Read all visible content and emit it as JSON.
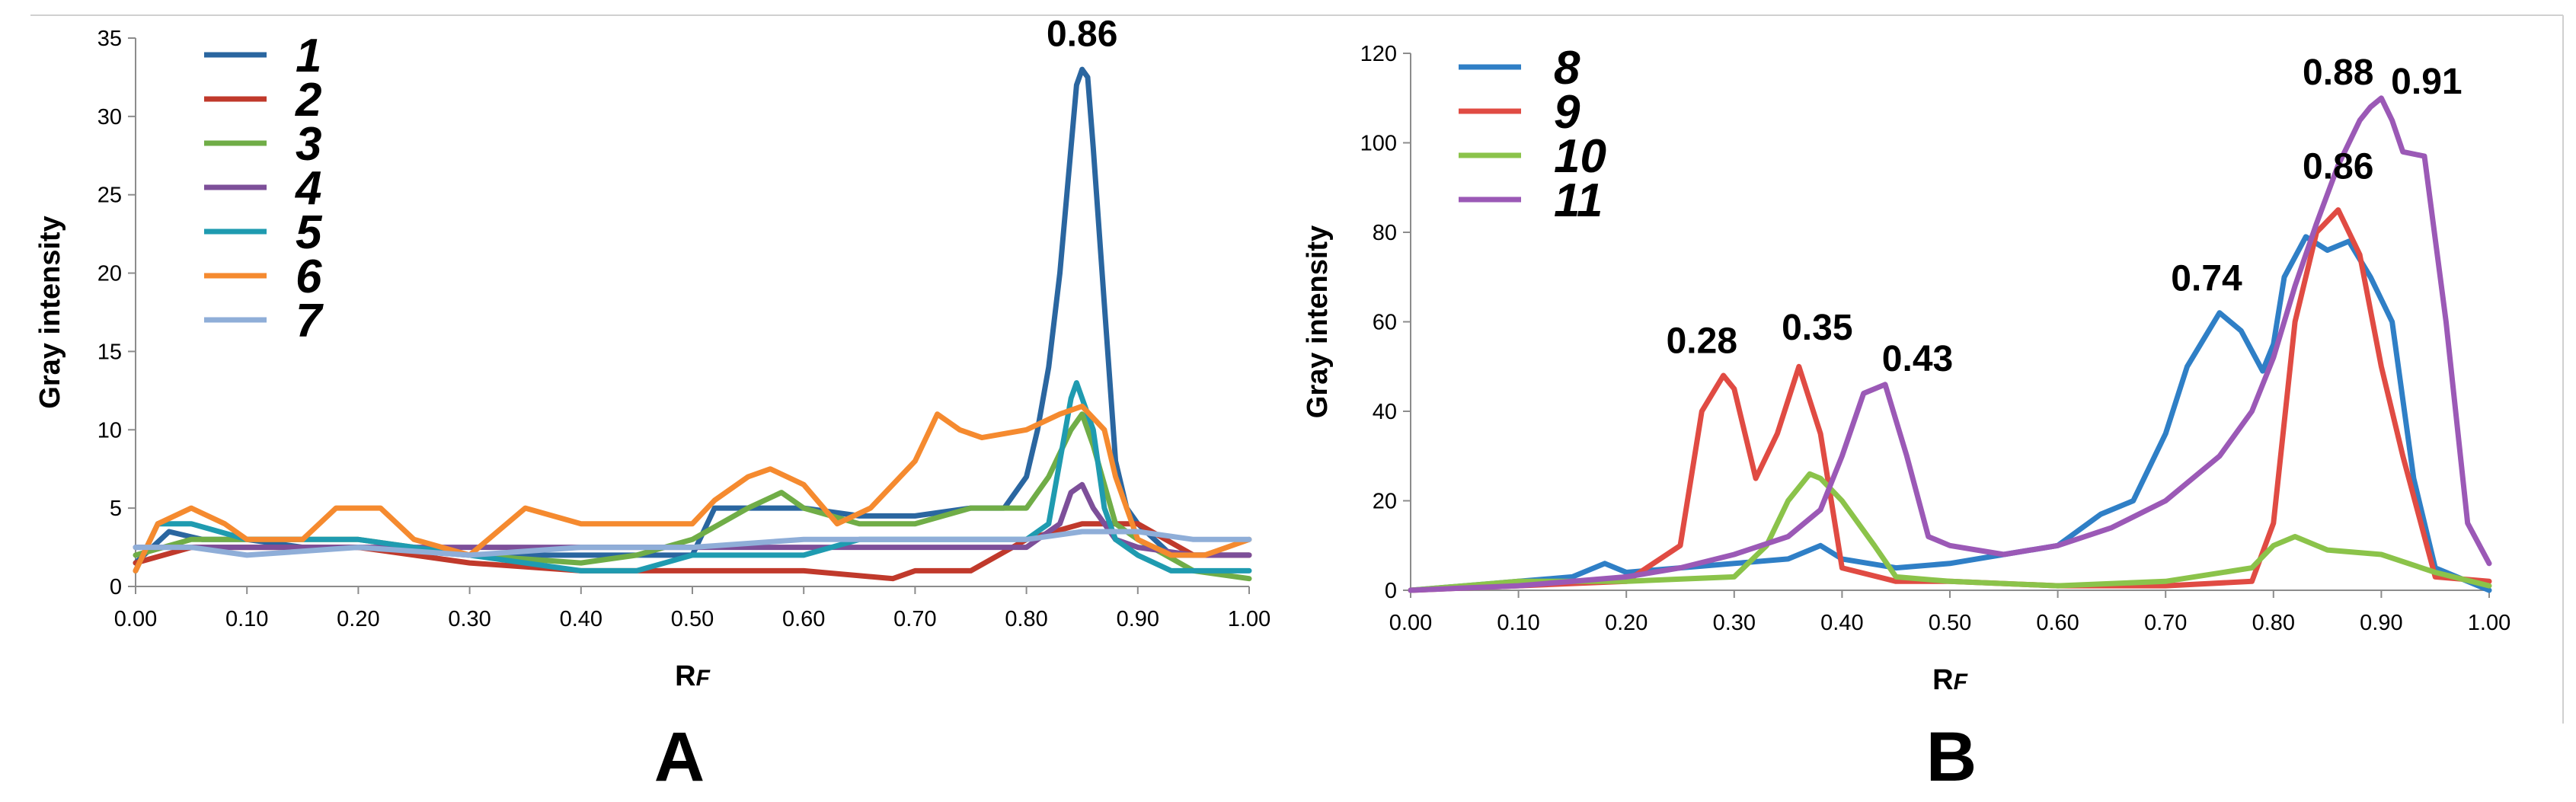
{
  "chart_data": [
    {
      "type": "line",
      "panel_label": "A",
      "title": "",
      "xlabel": "Rᶠ",
      "xlabel_main": "R",
      "xlabel_sub": "F",
      "ylabel": "Gray intensity",
      "xlim": [
        0,
        1
      ],
      "ylim": [
        0,
        35
      ],
      "x_ticks": [
        "0.00",
        "0.10",
        "0.20",
        "0.30",
        "0.40",
        "0.50",
        "0.60",
        "0.70",
        "0.80",
        "0.90",
        "1.00"
      ],
      "y_ticks": [
        "0",
        "5",
        "10",
        "15",
        "20",
        "25",
        "30",
        "35"
      ],
      "legend_position": "top-left",
      "series": [
        {
          "name": "1",
          "color": "#2a66a0",
          "x": [
            0,
            0.03,
            0.06,
            0.1,
            0.15,
            0.2,
            0.3,
            0.4,
            0.5,
            0.52,
            0.55,
            0.6,
            0.65,
            0.7,
            0.75,
            0.78,
            0.8,
            0.81,
            0.82,
            0.83,
            0.84,
            0.845,
            0.85,
            0.855,
            0.86,
            0.87,
            0.88,
            0.89,
            0.9,
            0.93,
            0.96,
            1.0
          ],
          "y": [
            1.5,
            3.5,
            3,
            3,
            2.5,
            2.5,
            2,
            2,
            2,
            5,
            5,
            5,
            4.5,
            4.5,
            5,
            5,
            7,
            10,
            14,
            20,
            28,
            32,
            33,
            32.5,
            28,
            18,
            8,
            5,
            4,
            2,
            2,
            2
          ]
        },
        {
          "name": "2",
          "color": "#c0392b",
          "x": [
            0,
            0.05,
            0.1,
            0.2,
            0.3,
            0.4,
            0.5,
            0.6,
            0.68,
            0.7,
            0.75,
            0.8,
            0.85,
            0.9,
            0.95,
            1.0
          ],
          "y": [
            1.5,
            2.5,
            2.5,
            2.5,
            1.5,
            1,
            1,
            1,
            0.5,
            1,
            1,
            3,
            4,
            4,
            2,
            2
          ]
        },
        {
          "name": "3",
          "color": "#70ad47",
          "x": [
            0,
            0.05,
            0.1,
            0.2,
            0.3,
            0.4,
            0.45,
            0.5,
            0.55,
            0.58,
            0.6,
            0.65,
            0.7,
            0.75,
            0.8,
            0.82,
            0.84,
            0.85,
            0.86,
            0.88,
            0.9,
            0.95,
            1.0
          ],
          "y": [
            2,
            3,
            3,
            3,
            2,
            1.5,
            2,
            3,
            5,
            6,
            5,
            4,
            4,
            5,
            5,
            7,
            10,
            11,
            9,
            4,
            3,
            1,
            0.5
          ]
        },
        {
          "name": "4",
          "color": "#7d4f99",
          "x": [
            0,
            0.05,
            0.1,
            0.2,
            0.3,
            0.4,
            0.5,
            0.6,
            0.7,
            0.8,
            0.83,
            0.84,
            0.85,
            0.86,
            0.88,
            0.9,
            0.95,
            1.0
          ],
          "y": [
            2.5,
            2.5,
            2.5,
            2.5,
            2.5,
            2.5,
            2.5,
            2.5,
            2.5,
            2.5,
            4,
            6,
            6.5,
            5,
            3,
            2.5,
            2,
            2
          ]
        },
        {
          "name": "5",
          "color": "#1f9bb0",
          "x": [
            0,
            0.02,
            0.05,
            0.1,
            0.2,
            0.3,
            0.4,
            0.45,
            0.5,
            0.55,
            0.6,
            0.65,
            0.7,
            0.75,
            0.8,
            0.82,
            0.83,
            0.84,
            0.845,
            0.85,
            0.86,
            0.87,
            0.88,
            0.9,
            0.93,
            0.96,
            1.0
          ],
          "y": [
            1,
            4,
            4,
            3,
            3,
            2,
            1,
            1,
            2,
            2,
            2,
            3,
            3,
            3,
            3,
            4,
            8,
            12,
            13,
            12,
            10,
            5,
            3,
            2,
            1,
            1,
            1
          ]
        },
        {
          "name": "6",
          "color": "#f58a2f",
          "x": [
            0,
            0.02,
            0.05,
            0.08,
            0.1,
            0.15,
            0.18,
            0.22,
            0.25,
            0.3,
            0.35,
            0.4,
            0.45,
            0.5,
            0.52,
            0.55,
            0.57,
            0.6,
            0.63,
            0.66,
            0.7,
            0.72,
            0.74,
            0.76,
            0.8,
            0.83,
            0.85,
            0.87,
            0.88,
            0.9,
            0.93,
            0.96,
            1.0
          ],
          "y": [
            1,
            4,
            5,
            4,
            3,
            3,
            5,
            5,
            3,
            2,
            5,
            4,
            4,
            4,
            5.5,
            7,
            7.5,
            6.5,
            4,
            5,
            8,
            11,
            10,
            9.5,
            10,
            11,
            11.5,
            10,
            7,
            3,
            2,
            2,
            3
          ]
        },
        {
          "name": "7",
          "color": "#8faed8",
          "x": [
            0,
            0.05,
            0.1,
            0.2,
            0.3,
            0.4,
            0.5,
            0.6,
            0.7,
            0.8,
            0.85,
            0.9,
            0.95,
            1.0
          ],
          "y": [
            2.5,
            2.5,
            2,
            2.5,
            2,
            2.5,
            2.5,
            3,
            3,
            3,
            3.5,
            3.5,
            3,
            3
          ]
        }
      ],
      "annotations": [
        {
          "text": "0.86",
          "x": 0.85,
          "y": 34.5
        }
      ]
    },
    {
      "type": "line",
      "panel_label": "B",
      "title": "",
      "xlabel": "Rᶠ",
      "xlabel_main": "R",
      "xlabel_sub": "F",
      "ylabel": "Gray intensity",
      "xlim": [
        0,
        1
      ],
      "ylim": [
        0,
        120
      ],
      "x_ticks": [
        "0.00",
        "0.10",
        "0.20",
        "0.30",
        "0.40",
        "0.50",
        "0.60",
        "0.70",
        "0.80",
        "0.90",
        "1.00"
      ],
      "y_ticks": [
        "0",
        "20",
        "40",
        "60",
        "80",
        "100",
        "120"
      ],
      "legend_position": "top-left",
      "series": [
        {
          "name": "8",
          "color": "#2f7fc6",
          "x": [
            0,
            0.1,
            0.15,
            0.18,
            0.2,
            0.25,
            0.3,
            0.35,
            0.38,
            0.4,
            0.45,
            0.5,
            0.55,
            0.6,
            0.64,
            0.67,
            0.7,
            0.72,
            0.75,
            0.77,
            0.79,
            0.8,
            0.81,
            0.83,
            0.85,
            0.87,
            0.89,
            0.91,
            0.93,
            0.95,
            1.0
          ],
          "y": [
            0,
            2,
            3,
            6,
            4,
            5,
            6,
            7,
            10,
            7,
            5,
            6,
            8,
            10,
            17,
            20,
            35,
            50,
            62,
            58,
            49,
            55,
            70,
            79,
            76,
            78,
            70,
            60,
            25,
            5,
            0
          ]
        },
        {
          "name": "9",
          "color": "#e04b43",
          "x": [
            0,
            0.1,
            0.2,
            0.25,
            0.27,
            0.29,
            0.3,
            0.32,
            0.34,
            0.36,
            0.38,
            0.4,
            0.45,
            0.5,
            0.6,
            0.7,
            0.78,
            0.8,
            0.82,
            0.84,
            0.86,
            0.88,
            0.9,
            0.92,
            0.95,
            1.0
          ],
          "y": [
            0,
            1,
            2,
            10,
            40,
            48,
            45,
            25,
            35,
            50,
            35,
            5,
            2,
            2,
            1,
            1,
            2,
            15,
            60,
            80,
            85,
            75,
            50,
            30,
            3,
            2
          ]
        },
        {
          "name": "10",
          "color": "#8bc34a",
          "x": [
            0,
            0.1,
            0.2,
            0.3,
            0.33,
            0.35,
            0.37,
            0.38,
            0.4,
            0.43,
            0.45,
            0.5,
            0.6,
            0.7,
            0.78,
            0.8,
            0.82,
            0.85,
            0.9,
            0.95,
            1.0
          ],
          "y": [
            0,
            2,
            2,
            3,
            10,
            20,
            26,
            25,
            20,
            10,
            3,
            2,
            1,
            2,
            5,
            10,
            12,
            9,
            8,
            4,
            1
          ]
        },
        {
          "name": "11",
          "color": "#9b59b6",
          "x": [
            0,
            0.1,
            0.2,
            0.25,
            0.3,
            0.35,
            0.38,
            0.4,
            0.42,
            0.44,
            0.46,
            0.48,
            0.5,
            0.55,
            0.6,
            0.65,
            0.7,
            0.75,
            0.78,
            0.8,
            0.82,
            0.84,
            0.86,
            0.88,
            0.89,
            0.9,
            0.91,
            0.92,
            0.94,
            0.96,
            0.98,
            1.0
          ],
          "y": [
            0,
            1,
            3,
            5,
            8,
            12,
            18,
            30,
            44,
            46,
            30,
            12,
            10,
            8,
            10,
            14,
            20,
            30,
            40,
            52,
            68,
            82,
            95,
            105,
            108,
            110,
            105,
            98,
            97,
            60,
            15,
            6
          ]
        }
      ],
      "annotations": [
        {
          "text": "0.28",
          "x": 0.27,
          "y": 53
        },
        {
          "text": "0.35",
          "x": 0.377,
          "y": 56
        },
        {
          "text": "0.43",
          "x": 0.47,
          "y": 49
        },
        {
          "text": "0.74",
          "x": 0.738,
          "y": 67
        },
        {
          "text": "0.86",
          "x": 0.86,
          "y": 92
        },
        {
          "text": "0.88",
          "x": 0.86,
          "y": 113
        },
        {
          "text": "0.91",
          "x": 0.942,
          "y": 111
        }
      ]
    }
  ]
}
